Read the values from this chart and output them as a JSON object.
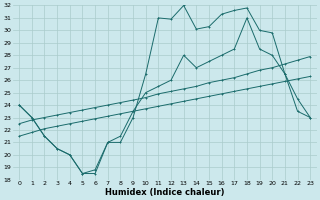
{
  "xlabel": "Humidex (Indice chaleur)",
  "background_color": "#cce8ec",
  "grid_color": "#aacccc",
  "line_color": "#1a6b6b",
  "xlim": [
    -0.5,
    23.5
  ],
  "ylim": [
    18,
    32
  ],
  "xticks": [
    0,
    1,
    2,
    3,
    4,
    5,
    6,
    7,
    8,
    9,
    10,
    11,
    12,
    13,
    14,
    15,
    16,
    17,
    18,
    19,
    20,
    21,
    22,
    23
  ],
  "yticks": [
    18,
    19,
    20,
    21,
    22,
    23,
    24,
    25,
    26,
    27,
    28,
    29,
    30,
    31,
    32
  ],
  "series1_x": [
    0,
    1,
    2,
    3,
    4,
    5,
    6,
    7,
    8,
    9,
    10,
    11,
    12,
    13,
    14,
    15,
    16,
    17,
    18,
    19,
    20,
    21,
    22,
    23
  ],
  "series1_y": [
    24,
    23,
    21.5,
    20.5,
    20,
    18.5,
    18.5,
    21,
    21,
    23,
    26.5,
    31,
    30.9,
    32,
    30.1,
    30.3,
    31.3,
    31.6,
    31.8,
    30,
    29.8,
    26.5,
    24.5,
    23
  ],
  "series2_x": [
    0,
    1,
    2,
    3,
    4,
    5,
    6,
    7,
    8,
    9,
    10,
    11,
    12,
    13,
    14,
    15,
    16,
    17,
    18,
    19,
    20,
    21,
    22,
    23
  ],
  "series2_y": [
    24,
    23,
    21.5,
    20.5,
    20,
    18.5,
    18.8,
    21,
    21.5,
    23.5,
    25,
    25.5,
    26,
    28,
    27,
    27.5,
    28,
    28.5,
    31,
    28.5,
    28,
    26.5,
    23.5,
    23
  ],
  "series3_x": [
    0,
    1,
    2,
    3,
    4,
    5,
    6,
    7,
    8,
    9,
    10,
    11,
    12,
    13,
    14,
    15,
    16,
    17,
    18,
    19,
    20,
    21,
    22,
    23
  ],
  "series3_y": [
    21.5,
    21.8,
    22.1,
    22.3,
    22.5,
    22.7,
    22.9,
    23.1,
    23.3,
    23.5,
    23.7,
    23.9,
    24.1,
    24.3,
    24.5,
    24.7,
    24.9,
    25.1,
    25.3,
    25.5,
    25.7,
    25.9,
    26.1,
    26.3
  ],
  "series4_x": [
    0,
    1,
    2,
    3,
    4,
    5,
    6,
    7,
    8,
    9,
    10,
    11,
    12,
    13,
    14,
    15,
    16,
    17,
    18,
    19,
    20,
    21,
    22,
    23
  ],
  "series4_y": [
    22.5,
    22.8,
    23.0,
    23.2,
    23.4,
    23.6,
    23.8,
    24.0,
    24.2,
    24.4,
    24.6,
    24.9,
    25.1,
    25.3,
    25.5,
    25.8,
    26.0,
    26.2,
    26.5,
    26.8,
    27.0,
    27.3,
    27.6,
    27.9
  ]
}
